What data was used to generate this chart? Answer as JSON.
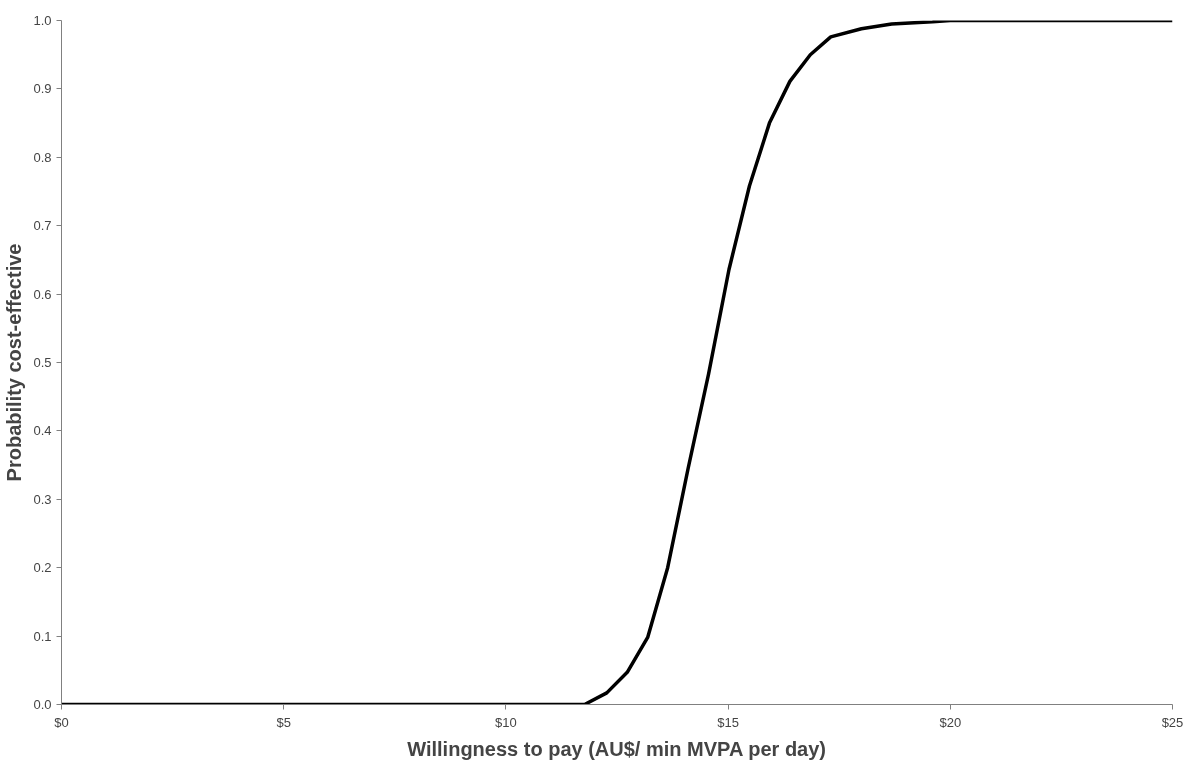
{
  "chart_data": {
    "type": "line",
    "xlabel": "Willingness to pay (AU$/ min MVPA per day)",
    "ylabel": "Probability cost-effective",
    "x": [
      0,
      5,
      10,
      11.77,
      12.27,
      12.73,
      13.19,
      13.64,
      14.1,
      14.56,
      15.02,
      15.48,
      15.93,
      16.39,
      16.85,
      17.31,
      18.0,
      18.68,
      19.6,
      20,
      25
    ],
    "series": [
      {
        "color": "#000000",
        "values": [
          0,
          0,
          0,
          0,
          0.017,
          0.047,
          0.098,
          0.2,
          0.345,
          0.483,
          0.636,
          0.758,
          0.85,
          0.911,
          0.95,
          0.976,
          0.988,
          0.995,
          0.998,
          1.0,
          1.0
        ]
      }
    ],
    "xlim": [
      0,
      25
    ],
    "ylim": [
      0,
      1
    ],
    "xticks": [
      {
        "value": 0,
        "label": "$0"
      },
      {
        "value": 5,
        "label": "$5"
      },
      {
        "value": 10,
        "label": "$10"
      },
      {
        "value": 15,
        "label": "$15"
      },
      {
        "value": 20,
        "label": "$20"
      },
      {
        "value": 25,
        "label": "$25"
      }
    ],
    "yticks": [
      {
        "value": 0,
        "label": "0.0"
      },
      {
        "value": 0.1,
        "label": "0.1"
      },
      {
        "value": 0.2,
        "label": "0.2"
      },
      {
        "value": 0.3,
        "label": "0.3"
      },
      {
        "value": 0.4,
        "label": "0.4"
      },
      {
        "value": 0.5,
        "label": "0.5"
      },
      {
        "value": 0.6,
        "label": "0.6"
      },
      {
        "value": 0.7,
        "label": "0.7"
      },
      {
        "value": 0.8,
        "label": "0.8"
      },
      {
        "value": 0.9,
        "label": "0.9"
      },
      {
        "value": 1,
        "label": "1.0"
      }
    ],
    "grid": false,
    "line_style": "solid",
    "marker": "none"
  }
}
